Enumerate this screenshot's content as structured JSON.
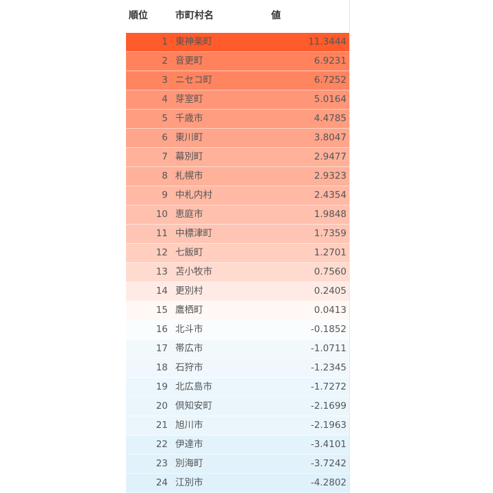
{
  "table": {
    "headers": {
      "rank": "順位",
      "name": "市町村名",
      "value": "値"
    },
    "colors": {
      "max": "#ff5b2b",
      "mid": "#ffffff",
      "min": "#dff1fb"
    },
    "rows": [
      {
        "rank": "1",
        "name": "東神楽町",
        "value": "11.3444"
      },
      {
        "rank": "2",
        "name": "音更町",
        "value": "6.9231"
      },
      {
        "rank": "3",
        "name": "ニセコ町",
        "value": "6.7252"
      },
      {
        "rank": "4",
        "name": "芽室町",
        "value": "5.0164"
      },
      {
        "rank": "5",
        "name": "千歳市",
        "value": "4.4785"
      },
      {
        "rank": "6",
        "name": "東川町",
        "value": "3.8047"
      },
      {
        "rank": "7",
        "name": "幕別町",
        "value": "2.9477"
      },
      {
        "rank": "8",
        "name": "札幌市",
        "value": "2.9323"
      },
      {
        "rank": "9",
        "name": "中札内村",
        "value": "2.4354"
      },
      {
        "rank": "10",
        "name": "恵庭市",
        "value": "1.9848"
      },
      {
        "rank": "11",
        "name": "中標津町",
        "value": "1.7359"
      },
      {
        "rank": "12",
        "name": "七飯町",
        "value": "1.2701"
      },
      {
        "rank": "13",
        "name": "苫小牧市",
        "value": "0.7560"
      },
      {
        "rank": "14",
        "name": "更別村",
        "value": "0.2405"
      },
      {
        "rank": "15",
        "name": "鷹栖町",
        "value": "0.0413"
      },
      {
        "rank": "16",
        "name": "北斗市",
        "value": "-0.1852"
      },
      {
        "rank": "17",
        "name": "帯広市",
        "value": "-1.0711"
      },
      {
        "rank": "18",
        "name": "石狩市",
        "value": "-1.2345"
      },
      {
        "rank": "19",
        "name": "北広島市",
        "value": "-1.7272"
      },
      {
        "rank": "20",
        "name": "倶知安町",
        "value": "-2.1699"
      },
      {
        "rank": "21",
        "name": "旭川市",
        "value": "-2.1963"
      },
      {
        "rank": "22",
        "name": "伊達市",
        "value": "-3.4101"
      },
      {
        "rank": "23",
        "name": "別海町",
        "value": "-3.7242"
      },
      {
        "rank": "24",
        "name": "江別市",
        "value": "-4.2802"
      }
    ]
  }
}
